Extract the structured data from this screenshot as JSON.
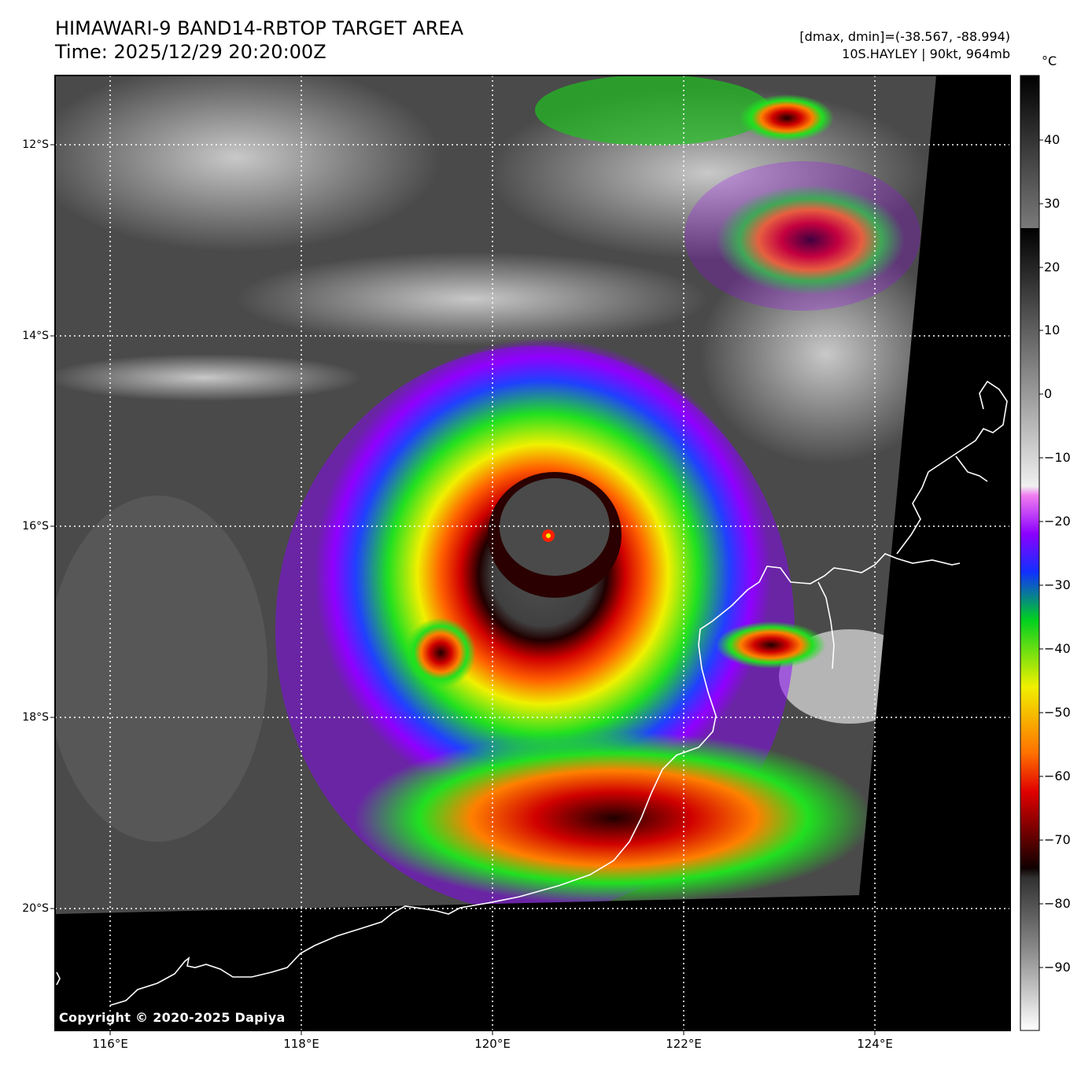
{
  "header": {
    "title": "HIMAWARI-9 BAND14-RBTOP TARGET AREA",
    "time": "Time: 2025/12/29 20:20:00Z",
    "range": "[dmax, dmin]=(-38.567, -88.994)",
    "storm": "10S.HAYLEY | 90kt, 964mb"
  },
  "map": {
    "lat_labels": [
      "12°S",
      "14°S",
      "16°S",
      "18°S",
      "20°S"
    ],
    "lon_labels": [
      "116°E",
      "118°E",
      "120°E",
      "122°E",
      "124°E"
    ],
    "copyright": "Copyright © 2020-2025 Dapiya",
    "storm_center": {
      "lon": 120.6,
      "lat": -16.1
    }
  },
  "colorbar": {
    "unit": "°C",
    "ticks": [
      "40",
      "30",
      "20",
      "10",
      "0",
      "−10",
      "−20",
      "−30",
      "−40",
      "−50",
      "−60",
      "−70",
      "−80",
      "−90"
    ]
  },
  "colors": {
    "background": "#000000",
    "coastline": "#ffffff",
    "grid": "#ffffff"
  }
}
